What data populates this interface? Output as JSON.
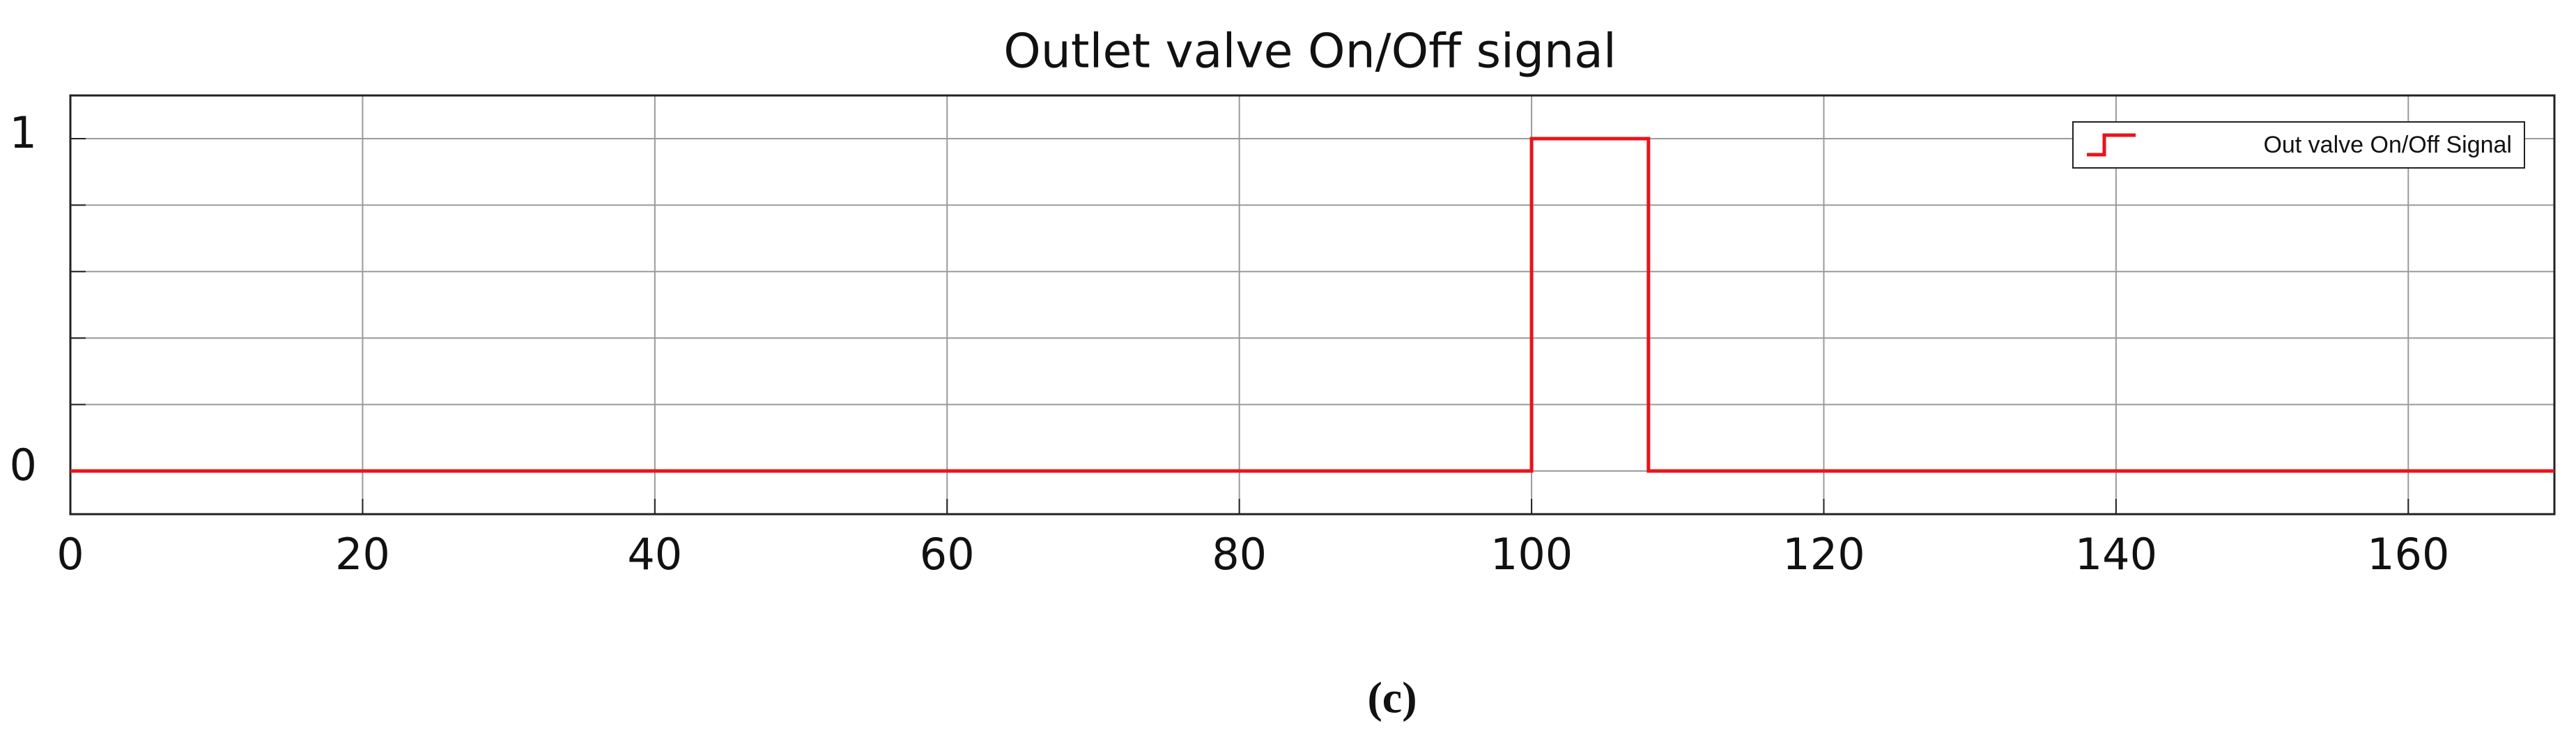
{
  "chart_data": {
    "type": "line",
    "title": "Outlet valve On/Off signal",
    "x": [
      0,
      100,
      100,
      108,
      108,
      170
    ],
    "series": [
      {
        "name": "Out valve On/Off Signal",
        "color": "#e8141c",
        "values": [
          0,
          0,
          1,
          1,
          0,
          0
        ]
      }
    ],
    "xlim": [
      0,
      170
    ],
    "xticks": [
      0,
      20,
      40,
      60,
      80,
      100,
      120,
      140,
      160
    ],
    "ylim": [
      -0.13,
      1.13
    ],
    "yticks": [
      0,
      {
        "value": 0.2,
        "label": null
      },
      {
        "value": 0.4,
        "label": null
      },
      {
        "value": 0.6,
        "label": null
      },
      {
        "value": 0.8,
        "label": null
      },
      1
    ],
    "grid": true,
    "legend": "upper right"
  },
  "caption": "(c)"
}
